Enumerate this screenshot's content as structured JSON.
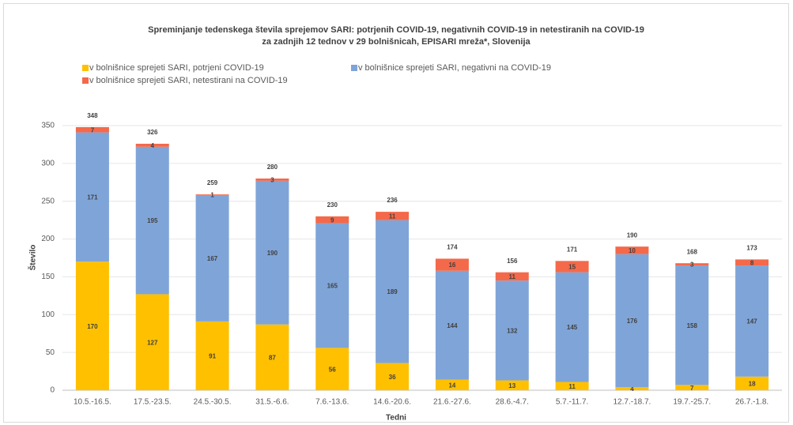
{
  "chart_data": {
    "type": "stacked_bar",
    "title": [
      "Spreminjanje tedenskega števila sprejemov SARI: potrjenih COVID-19, negativnih COVID-19 in netestiranih na COVID-19",
      "za zadnjih 12 tednov v 29 bolnišnicah, EPISARI mreža*, Slovenija"
    ],
    "x_label": "Tedni",
    "y_label": "Število",
    "categories": [
      "10.5.-16.5.",
      "17.5.-23.5.",
      "24.5.-30.5.",
      "31.5.-6.6.",
      "7.6.-13.6.",
      "14.6.-20.6.",
      "21.6.-27.6.",
      "28.6.-4.7.",
      "5.7.-11.7.",
      "12.7.-18.7.",
      "19.7.-25.7.",
      "26.7.-1.8."
    ],
    "series": [
      {
        "name": "v bolnišnice sprejeti SARI, potrjeni COVID-19",
        "color": "#ffc000",
        "values": [
          170,
          127,
          91,
          87,
          56,
          36,
          14,
          13,
          11,
          4,
          7,
          18
        ]
      },
      {
        "name": "v bolnišnice sprejeti SARI, negativni na COVID-19",
        "color": "#7fa4d8",
        "values": [
          171,
          195,
          167,
          190,
          165,
          189,
          144,
          132,
          145,
          176,
          158,
          147
        ]
      },
      {
        "name": "v bolnišnice sprejeti SARI, netestirani na COVID-19",
        "color": "#f4694a",
        "values": [
          7,
          4,
          1,
          3,
          9,
          11,
          16,
          11,
          15,
          10,
          3,
          8
        ]
      }
    ],
    "totals": [
      348,
      326,
      259,
      280,
      230,
      236,
      174,
      156,
      171,
      190,
      168,
      173
    ],
    "ylim": [
      0,
      350
    ],
    "yticks": [
      0,
      50,
      100,
      150,
      200,
      250,
      300,
      350
    ],
    "grid": true
  }
}
